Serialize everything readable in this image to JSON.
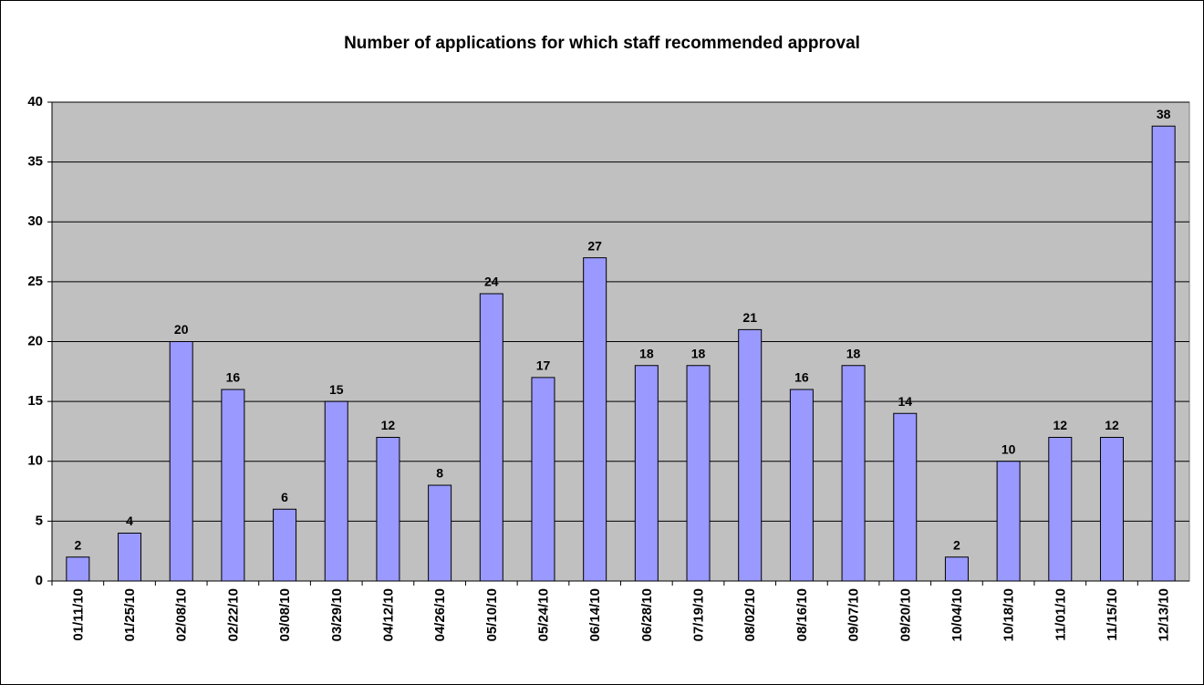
{
  "chart_data": {
    "type": "bar",
    "title": "Number of applications for which staff recommended approval",
    "categories": [
      "01/11/10",
      "01/25/10",
      "02/08/10",
      "02/22/10",
      "03/08/10",
      "03/29/10",
      "04/12/10",
      "04/26/10",
      "05/10/10",
      "05/24/10",
      "06/14/10",
      "06/28/10",
      "07/19/10",
      "08/02/10",
      "08/16/10",
      "09/07/10",
      "09/20/10",
      "10/04/10",
      "10/18/10",
      "11/01/10",
      "11/15/10",
      "12/13/10"
    ],
    "values": [
      2,
      4,
      20,
      16,
      6,
      15,
      12,
      8,
      24,
      17,
      27,
      18,
      18,
      21,
      16,
      18,
      14,
      2,
      10,
      12,
      12,
      38
    ],
    "color": "#9999ff",
    "ylim": [
      0,
      40
    ],
    "yticks": [
      0,
      5,
      10,
      15,
      20,
      25,
      30,
      35,
      40
    ],
    "grid": true
  }
}
